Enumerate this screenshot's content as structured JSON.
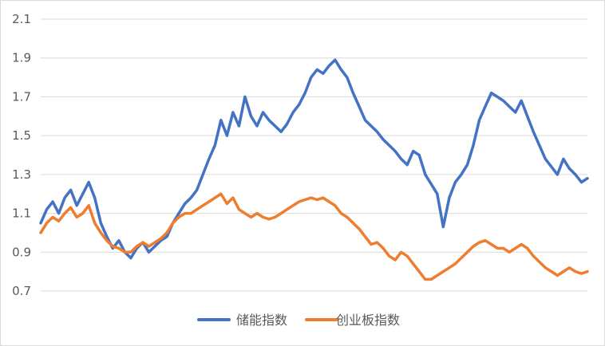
{
  "chart_data": {
    "type": "line",
    "title": "",
    "xlabel": "",
    "ylabel": "",
    "ylim": [
      0.7,
      2.1
    ],
    "yticks": [
      "0.7",
      "0.9",
      "1.1",
      "1.3",
      "1.5",
      "1.7",
      "1.9",
      "2.1"
    ],
    "grid": true,
    "legend_position": "bottom",
    "series": [
      {
        "name": "储能指数",
        "color": "#4472C4",
        "values": [
          1.05,
          1.12,
          1.16,
          1.1,
          1.18,
          1.22,
          1.14,
          1.2,
          1.26,
          1.18,
          1.05,
          0.98,
          0.92,
          0.96,
          0.9,
          0.87,
          0.92,
          0.95,
          0.9,
          0.93,
          0.96,
          0.98,
          1.05,
          1.1,
          1.15,
          1.18,
          1.22,
          1.3,
          1.38,
          1.45,
          1.58,
          1.5,
          1.62,
          1.55,
          1.7,
          1.6,
          1.55,
          1.62,
          1.58,
          1.55,
          1.52,
          1.56,
          1.62,
          1.66,
          1.72,
          1.8,
          1.84,
          1.82,
          1.86,
          1.89,
          1.84,
          1.8,
          1.72,
          1.65,
          1.58,
          1.55,
          1.52,
          1.48,
          1.45,
          1.42,
          1.38,
          1.35,
          1.42,
          1.4,
          1.3,
          1.25,
          1.2,
          1.03,
          1.18,
          1.26,
          1.3,
          1.35,
          1.45,
          1.58,
          1.65,
          1.72,
          1.7,
          1.68,
          1.65,
          1.62,
          1.68,
          1.6,
          1.52,
          1.45,
          1.38,
          1.34,
          1.3,
          1.38,
          1.33,
          1.3,
          1.26,
          1.28
        ]
      },
      {
        "name": "创业板指数",
        "color": "#ED7D31",
        "values": [
          1.0,
          1.05,
          1.08,
          1.06,
          1.1,
          1.13,
          1.08,
          1.1,
          1.14,
          1.05,
          1.0,
          0.96,
          0.93,
          0.92,
          0.9,
          0.9,
          0.93,
          0.95,
          0.93,
          0.95,
          0.97,
          1.0,
          1.05,
          1.08,
          1.1,
          1.1,
          1.12,
          1.14,
          1.16,
          1.18,
          1.2,
          1.15,
          1.18,
          1.12,
          1.1,
          1.08,
          1.1,
          1.08,
          1.07,
          1.08,
          1.1,
          1.12,
          1.14,
          1.16,
          1.17,
          1.18,
          1.17,
          1.18,
          1.16,
          1.14,
          1.1,
          1.08,
          1.05,
          1.02,
          0.98,
          0.94,
          0.95,
          0.92,
          0.88,
          0.86,
          0.9,
          0.88,
          0.84,
          0.8,
          0.76,
          0.76,
          0.78,
          0.8,
          0.82,
          0.84,
          0.87,
          0.9,
          0.93,
          0.95,
          0.96,
          0.94,
          0.92,
          0.92,
          0.9,
          0.92,
          0.94,
          0.92,
          0.88,
          0.85,
          0.82,
          0.8,
          0.78,
          0.8,
          0.82,
          0.8,
          0.79,
          0.8
        ]
      }
    ]
  }
}
